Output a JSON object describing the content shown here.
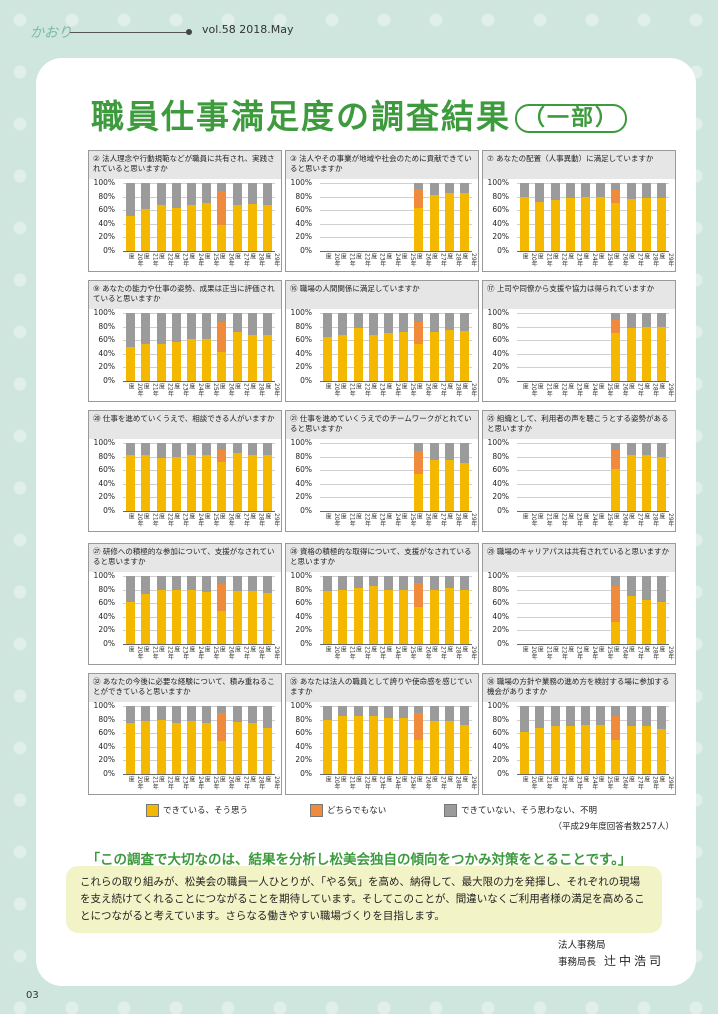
{
  "header": {
    "logo": "かおり",
    "vol": "vol.58 2018.May"
  },
  "title": {
    "main": "職員仕事満足度の調査結果",
    "sub": "一部"
  },
  "colors": {
    "yes": "#f5b800",
    "neutral": "#f08a3c",
    "no": "#9b9b9b"
  },
  "chart_data": [
    {
      "type": "bar",
      "title": "② 法人理念や行動規範などが職員に共有され、実践されていると思いますか",
      "x": [
        "20年度",
        "21年度",
        "22年度",
        "23年度",
        "24年度",
        "25年度",
        "26年度",
        "27年度",
        "28年度",
        "29年度"
      ],
      "series": [
        {
          "name": "できている、そう思う",
          "values": [
            52,
            62,
            68,
            63,
            68,
            70,
            38,
            68,
            69,
            67
          ]
        },
        {
          "name": "どちらでもない",
          "values": [
            0,
            0,
            0,
            0,
            0,
            0,
            50,
            0,
            0,
            0
          ]
        },
        {
          "name": "できていない、そう思わない、不明",
          "values": [
            48,
            38,
            32,
            37,
            32,
            30,
            12,
            32,
            31,
            33
          ]
        }
      ],
      "yticks": [
        "100%",
        "80%",
        "60%",
        "40%",
        "20%",
        "0%"
      ]
    },
    {
      "type": "bar",
      "title": "③ 法人やその事業が地域や社会のために貢献できていると思いますか",
      "x": [
        "20年度",
        "21年度",
        "22年度",
        "23年度",
        "24年度",
        "25年度",
        "26年度",
        "27年度",
        "28年度",
        "29年度"
      ],
      "series": [
        {
          "name": "できている、そう思う",
          "values": [
            null,
            null,
            null,
            null,
            null,
            null,
            63,
            83,
            85,
            85
          ]
        },
        {
          "name": "どちらでもない",
          "values": [
            null,
            null,
            null,
            null,
            null,
            null,
            28,
            0,
            0,
            0
          ]
        },
        {
          "name": "できていない、そう思わない、不明",
          "values": [
            null,
            null,
            null,
            null,
            null,
            null,
            9,
            17,
            15,
            15
          ]
        }
      ],
      "yticks": [
        "100%",
        "80%",
        "60%",
        "40%",
        "20%",
        "0%"
      ]
    },
    {
      "type": "bar",
      "title": "⑦ あなたの配置（人事異動）に満足していますか",
      "x": [
        "20年度",
        "21年度",
        "22年度",
        "23年度",
        "24年度",
        "25年度",
        "26年度",
        "27年度",
        "28年度",
        "29年度"
      ],
      "series": [
        {
          "name": "できている、そう思う",
          "values": [
            80,
            72,
            75,
            78,
            80,
            80,
            70,
            77,
            78,
            78
          ]
        },
        {
          "name": "どちらでもない",
          "values": [
            0,
            0,
            0,
            0,
            0,
            0,
            20,
            0,
            0,
            0
          ]
        },
        {
          "name": "できていない、そう思わない、不明",
          "values": [
            20,
            28,
            25,
            22,
            20,
            20,
            10,
            23,
            22,
            22
          ]
        }
      ],
      "yticks": [
        "100%",
        "80%",
        "60%",
        "40%",
        "20%",
        "0%"
      ]
    },
    {
      "type": "bar",
      "title": "⑨ あなたの能力や仕事の姿勢、成果は正当に評価されていると思いますか",
      "x": [
        "20年度",
        "21年度",
        "22年度",
        "23年度",
        "24年度",
        "25年度",
        "26年度",
        "27年度",
        "28年度",
        "29年度"
      ],
      "series": [
        {
          "name": "できている、そう思う",
          "values": [
            50,
            55,
            55,
            57,
            62,
            62,
            42,
            72,
            68,
            67
          ]
        },
        {
          "name": "どちらでもない",
          "values": [
            0,
            0,
            0,
            0,
            0,
            0,
            45,
            0,
            0,
            0
          ]
        },
        {
          "name": "できていない、そう思わない、不明",
          "values": [
            50,
            45,
            45,
            43,
            38,
            38,
            13,
            28,
            32,
            33
          ]
        }
      ],
      "yticks": [
        "100%",
        "80%",
        "60%",
        "40%",
        "20%",
        "0%"
      ]
    },
    {
      "type": "bar",
      "title": "⑯ 職場の人間関係に満足していますか",
      "x": [
        "20年度",
        "21年度",
        "22年度",
        "23年度",
        "24年度",
        "25年度",
        "26年度",
        "27年度",
        "28年度",
        "29年度"
      ],
      "series": [
        {
          "name": "できている、そう思う",
          "values": [
            65,
            67,
            78,
            68,
            70,
            72,
            55,
            72,
            75,
            73
          ]
        },
        {
          "name": "どちらでもない",
          "values": [
            0,
            0,
            0,
            0,
            0,
            0,
            32,
            0,
            0,
            0
          ]
        },
        {
          "name": "できていない、そう思わない、不明",
          "values": [
            35,
            33,
            22,
            32,
            30,
            28,
            13,
            28,
            25,
            27
          ]
        }
      ],
      "yticks": [
        "100%",
        "80%",
        "60%",
        "40%",
        "20%",
        "0%"
      ]
    },
    {
      "type": "bar",
      "title": "⑰ 上司や同僚から支援や協力は得られていますか",
      "x": [
        "20年度",
        "21年度",
        "22年度",
        "23年度",
        "24年度",
        "25年度",
        "26年度",
        "27年度",
        "28年度",
        "29年度"
      ],
      "series": [
        {
          "name": "できている、そう思う",
          "values": [
            null,
            null,
            null,
            null,
            null,
            null,
            70,
            78,
            80,
            80
          ]
        },
        {
          "name": "どちらでもない",
          "values": [
            null,
            null,
            null,
            null,
            null,
            null,
            20,
            0,
            0,
            0
          ]
        },
        {
          "name": "できていない、そう思わない、不明",
          "values": [
            null,
            null,
            null,
            null,
            null,
            null,
            10,
            22,
            20,
            20
          ]
        }
      ],
      "yticks": [
        "100%",
        "80%",
        "60%",
        "40%",
        "20%",
        "0%"
      ]
    },
    {
      "type": "bar",
      "title": "⑳ 仕事を進めていくうえで、相談できる人がいますか",
      "x": [
        "20年度",
        "21年度",
        "22年度",
        "23年度",
        "24年度",
        "25年度",
        "26年度",
        "27年度",
        "28年度",
        "29年度"
      ],
      "series": [
        {
          "name": "できている、そう思う",
          "values": [
            82,
            82,
            78,
            80,
            82,
            82,
            72,
            85,
            83,
            82
          ]
        },
        {
          "name": "どちらでもない",
          "values": [
            0,
            0,
            0,
            0,
            0,
            0,
            18,
            0,
            0,
            0
          ]
        },
        {
          "name": "できていない、そう思わない、不明",
          "values": [
            18,
            18,
            22,
            20,
            18,
            18,
            10,
            15,
            17,
            18
          ]
        }
      ],
      "yticks": [
        "100%",
        "80%",
        "60%",
        "40%",
        "20%",
        "0%"
      ]
    },
    {
      "type": "bar",
      "title": "㉑ 仕事を進めていくうえでのチームワークがとれていると思いますか",
      "x": [
        "20年度",
        "21年度",
        "22年度",
        "23年度",
        "24年度",
        "25年度",
        "26年度",
        "27年度",
        "28年度",
        "29年度"
      ],
      "series": [
        {
          "name": "できている、そう思う",
          "values": [
            null,
            null,
            null,
            null,
            null,
            null,
            55,
            75,
            75,
            70
          ]
        },
        {
          "name": "どちらでもない",
          "values": [
            null,
            null,
            null,
            null,
            null,
            null,
            33,
            0,
            0,
            0
          ]
        },
        {
          "name": "できていない、そう思わない、不明",
          "values": [
            null,
            null,
            null,
            null,
            null,
            null,
            12,
            25,
            25,
            30
          ]
        }
      ],
      "yticks": [
        "100%",
        "80%",
        "60%",
        "40%",
        "20%",
        "0%"
      ]
    },
    {
      "type": "bar",
      "title": "㉕ 組織として、利用者の声を聴こうとする姿勢があると思いますか",
      "x": [
        "20年度",
        "21年度",
        "22年度",
        "23年度",
        "24年度",
        "25年度",
        "26年度",
        "27年度",
        "28年度",
        "29年度"
      ],
      "series": [
        {
          "name": "できている、そう思う",
          "values": [
            null,
            null,
            null,
            null,
            null,
            null,
            62,
            82,
            82,
            80
          ]
        },
        {
          "name": "どちらでもない",
          "values": [
            null,
            null,
            null,
            null,
            null,
            null,
            28,
            0,
            0,
            0
          ]
        },
        {
          "name": "できていない、そう思わない、不明",
          "values": [
            null,
            null,
            null,
            null,
            null,
            null,
            10,
            18,
            18,
            20
          ]
        }
      ],
      "yticks": [
        "100%",
        "80%",
        "60%",
        "40%",
        "20%",
        "0%"
      ]
    },
    {
      "type": "bar",
      "title": "㉗ 研修への積極的な参加について、支援がなされていると思いますか",
      "x": [
        "20年度",
        "21年度",
        "22年度",
        "23年度",
        "24年度",
        "25年度",
        "26年度",
        "27年度",
        "28年度",
        "29年度"
      ],
      "series": [
        {
          "name": "できている、そう思う",
          "values": [
            62,
            73,
            80,
            80,
            80,
            76,
            48,
            78,
            78,
            75
          ]
        },
        {
          "name": "どちらでもない",
          "values": [
            0,
            0,
            0,
            0,
            0,
            0,
            40,
            0,
            0,
            0
          ]
        },
        {
          "name": "できていない、そう思わない、不明",
          "values": [
            38,
            27,
            20,
            20,
            20,
            24,
            12,
            22,
            22,
            25
          ]
        }
      ],
      "yticks": [
        "100%",
        "80%",
        "60%",
        "40%",
        "20%",
        "0%"
      ]
    },
    {
      "type": "bar",
      "title": "㉘ 資格の積極的な取得について、支援がなされていると思いますか",
      "x": [
        "20年度",
        "21年度",
        "22年度",
        "23年度",
        "24年度",
        "25年度",
        "26年度",
        "27年度",
        "28年度",
        "29年度"
      ],
      "series": [
        {
          "name": "できている、そう思う",
          "values": [
            78,
            80,
            82,
            85,
            80,
            80,
            55,
            80,
            82,
            80
          ]
        },
        {
          "name": "どちらでもない",
          "values": [
            0,
            0,
            0,
            0,
            0,
            0,
            35,
            0,
            0,
            0
          ]
        },
        {
          "name": "できていない、そう思わない、不明",
          "values": [
            22,
            20,
            18,
            15,
            20,
            20,
            10,
            20,
            18,
            20
          ]
        }
      ],
      "yticks": [
        "100%",
        "80%",
        "60%",
        "40%",
        "20%",
        "0%"
      ]
    },
    {
      "type": "bar",
      "title": "㉙ 職場のキャリアパスは共有されていると思いますか",
      "x": [
        "20年度",
        "21年度",
        "22年度",
        "23年度",
        "24年度",
        "25年度",
        "26年度",
        "27年度",
        "28年度",
        "29年度"
      ],
      "series": [
        {
          "name": "できている、そう思う",
          "values": [
            null,
            null,
            null,
            null,
            null,
            null,
            32,
            70,
            65,
            62
          ]
        },
        {
          "name": "どちらでもない",
          "values": [
            null,
            null,
            null,
            null,
            null,
            null,
            53,
            0,
            0,
            0
          ]
        },
        {
          "name": "できていない、そう思わない、不明",
          "values": [
            null,
            null,
            null,
            null,
            null,
            null,
            15,
            30,
            35,
            38
          ]
        }
      ],
      "yticks": [
        "100%",
        "80%",
        "60%",
        "40%",
        "20%",
        "0%"
      ]
    },
    {
      "type": "bar",
      "title": "㉜ あなたの今後に必要な経験について、積み重ねることができていると思いますか",
      "x": [
        "20年度",
        "21年度",
        "22年度",
        "23年度",
        "24年度",
        "25年度",
        "26年度",
        "27年度",
        "28年度",
        "29年度"
      ],
      "series": [
        {
          "name": "できている、そう思う",
          "values": [
            75,
            78,
            80,
            75,
            78,
            75,
            48,
            77,
            75,
            68
          ]
        },
        {
          "name": "どちらでもない",
          "values": [
            0,
            0,
            0,
            0,
            0,
            0,
            42,
            0,
            0,
            0
          ]
        },
        {
          "name": "できていない、そう思わない、不明",
          "values": [
            25,
            22,
            20,
            25,
            22,
            25,
            10,
            23,
            25,
            32
          ]
        }
      ],
      "yticks": [
        "100%",
        "80%",
        "60%",
        "40%",
        "20%",
        "0%"
      ]
    },
    {
      "type": "bar",
      "title": "㉟ あなたは法人の職員として誇りや使命感を感じていますか",
      "x": [
        "20年度",
        "21年度",
        "22年度",
        "23年度",
        "24年度",
        "25年度",
        "26年度",
        "27年度",
        "28年度",
        "29年度"
      ],
      "series": [
        {
          "name": "できている、そう思う",
          "values": [
            80,
            85,
            85,
            85,
            82,
            82,
            50,
            78,
            78,
            72
          ]
        },
        {
          "name": "どちらでもない",
          "values": [
            0,
            0,
            0,
            0,
            0,
            0,
            40,
            0,
            0,
            0
          ]
        },
        {
          "name": "できていない、そう思わない、不明",
          "values": [
            20,
            15,
            15,
            15,
            18,
            18,
            10,
            22,
            22,
            28
          ]
        }
      ],
      "yticks": [
        "100%",
        "80%",
        "60%",
        "40%",
        "20%",
        "0%"
      ]
    },
    {
      "type": "bar",
      "title": "㊱ 職場の方針や業務の進め方を検討する場に参加する機会がありますか",
      "x": [
        "20年度",
        "21年度",
        "22年度",
        "23年度",
        "24年度",
        "25年度",
        "26年度",
        "27年度",
        "28年度",
        "29年度"
      ],
      "series": [
        {
          "name": "できている、そう思う",
          "values": [
            62,
            68,
            70,
            70,
            72,
            72,
            50,
            70,
            70,
            66
          ]
        },
        {
          "name": "どちらでもない",
          "values": [
            0,
            0,
            0,
            0,
            0,
            0,
            35,
            0,
            0,
            0
          ]
        },
        {
          "name": "できていない、そう思わない、不明",
          "values": [
            38,
            32,
            30,
            30,
            28,
            28,
            15,
            30,
            30,
            34
          ]
        }
      ],
      "yticks": [
        "100%",
        "80%",
        "60%",
        "40%",
        "20%",
        "0%"
      ]
    }
  ],
  "legend": [
    {
      "label": "できている、そう思う",
      "color": "#f5b800"
    },
    {
      "label": "どちらでもない",
      "color": "#f08a3c"
    },
    {
      "label": "できていない、そう思わない、不明",
      "color": "#9b9b9b"
    }
  ],
  "note": "（平成29年度回答者数257人）",
  "highlight": "「この調査で大切なのは、結果を分析し松美会独自の傾向をつかみ対策をとることです。」",
  "body": "これらの取り組みが、松美会の職員一人ひとりが、「やる気」を高め、納得して、最大限の力を発揮し、それぞれの現場を支え続けてくれることにつながることを期待しています。そしてこのことが、間違いなくご利用者様の満足を高めることにつながると考えています。さらなる働きやすい職場づくりを目指します。",
  "signature": {
    "dept": "法人事務局",
    "role": "事務局長",
    "name": "辻中浩司"
  },
  "page_number": "03"
}
